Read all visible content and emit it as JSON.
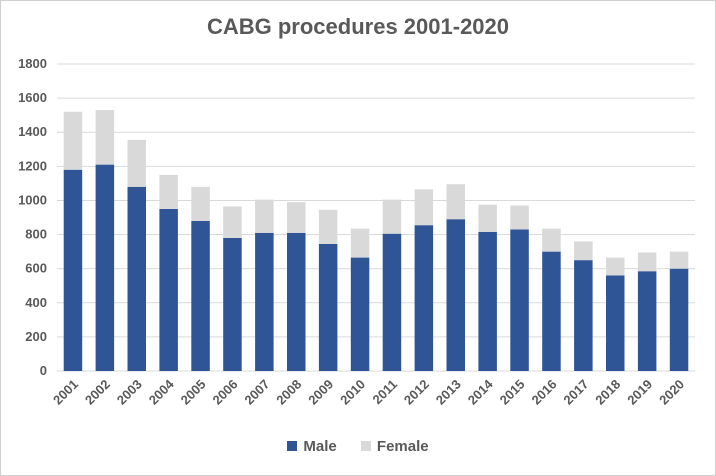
{
  "colors": {
    "male": "#2F5597",
    "female": "#D9D9D9",
    "grid": "#D9D9D9",
    "text": "#595959"
  },
  "chart_data": {
    "type": "bar",
    "stacked": true,
    "title": "CABG procedures 2001-2020",
    "xlabel": "",
    "ylabel": "",
    "categories": [
      "2001",
      "2002",
      "2003",
      "2004",
      "2005",
      "2006",
      "2007",
      "2008",
      "2009",
      "2010",
      "2011",
      "2012",
      "2013",
      "2014",
      "2015",
      "2016",
      "2017",
      "2018",
      "2019",
      "2020"
    ],
    "series": [
      {
        "name": "Male",
        "values": [
          1180,
          1210,
          1080,
          950,
          880,
          780,
          810,
          810,
          745,
          665,
          805,
          855,
          890,
          815,
          830,
          700,
          650,
          560,
          585,
          600
        ]
      },
      {
        "name": "Female",
        "values": [
          340,
          320,
          275,
          200,
          200,
          185,
          195,
          180,
          200,
          170,
          200,
          210,
          205,
          160,
          140,
          135,
          110,
          105,
          110,
          100
        ]
      }
    ],
    "yticks": [
      0,
      200,
      400,
      600,
      800,
      1000,
      1200,
      1400,
      1600,
      1800
    ],
    "ylim": [
      0,
      1800
    ],
    "grid": true,
    "legend": "bottom"
  }
}
